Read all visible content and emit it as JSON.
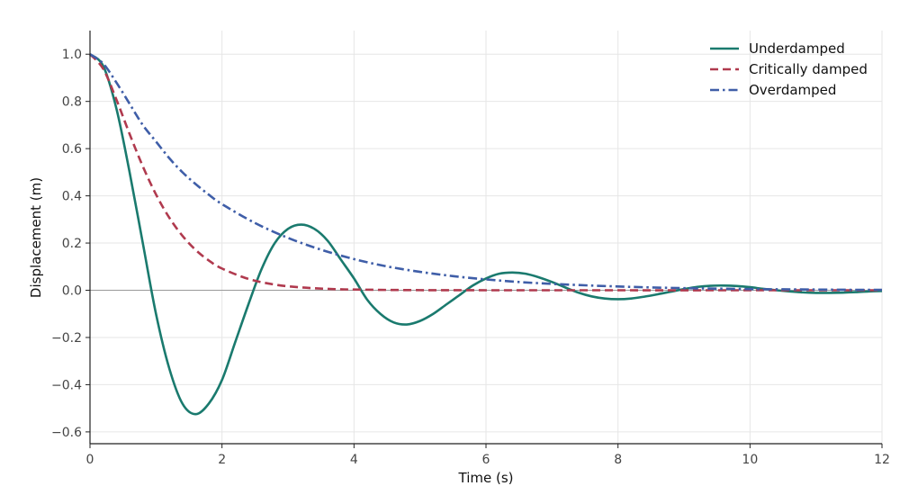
{
  "chart_data": {
    "type": "line",
    "title": "",
    "xlabel": "Time (s)",
    "ylabel": "Displacement (m)",
    "xlim": [
      0,
      12
    ],
    "ylim": [
      -0.65,
      1.1
    ],
    "xticks": [
      0,
      2,
      4,
      6,
      8,
      10,
      12
    ],
    "xtick_labels": [
      "0",
      "2",
      "4",
      "6",
      "8",
      "10",
      "12"
    ],
    "yticks": [
      -0.6,
      -0.4,
      -0.2,
      0.0,
      0.2,
      0.4,
      0.6,
      0.8,
      1.0
    ],
    "ytick_labels": [
      "−0.6",
      "−0.4",
      "−0.2",
      "0.0",
      "0.2",
      "0.4",
      "0.6",
      "0.8",
      "1.0"
    ],
    "grid": true,
    "zero_line": true,
    "legend_position": "top-right",
    "series": [
      {
        "name": "Underdamped",
        "color": "#1a7a6e",
        "dash": "solid",
        "x": [
          0,
          0.2,
          0.4,
          0.6,
          0.8,
          1.0,
          1.2,
          1.4,
          1.6,
          1.8,
          2.0,
          2.2,
          2.4,
          2.6,
          2.8,
          3.0,
          3.2,
          3.4,
          3.6,
          3.8,
          4.0,
          4.2,
          4.4,
          4.6,
          4.8,
          5.0,
          5.2,
          5.4,
          5.6,
          5.8,
          6.0,
          6.2,
          6.4,
          6.6,
          6.8,
          7.0,
          7.2,
          7.4,
          7.6,
          7.8,
          8.0,
          8.2,
          8.4,
          8.6,
          8.8,
          9.0,
          9.2,
          9.4,
          9.6,
          9.8,
          10.0,
          10.2,
          10.4,
          10.6,
          10.8,
          11.0,
          11.2,
          11.4,
          11.6,
          11.8,
          12.0
        ],
        "y": [
          1.0,
          0.95,
          0.77,
          0.5,
          0.2,
          -0.1,
          -0.33,
          -0.48,
          -0.525,
          -0.48,
          -0.38,
          -0.22,
          -0.06,
          0.09,
          0.2,
          0.26,
          0.278,
          0.26,
          0.21,
          0.13,
          0.05,
          -0.04,
          -0.1,
          -0.136,
          -0.145,
          -0.13,
          -0.1,
          -0.06,
          -0.02,
          0.02,
          0.05,
          0.07,
          0.075,
          0.07,
          0.055,
          0.035,
          0.012,
          -0.01,
          -0.026,
          -0.035,
          -0.038,
          -0.035,
          -0.027,
          -0.017,
          -0.006,
          0.005,
          0.014,
          0.019,
          0.02,
          0.018,
          0.013,
          0.006,
          0.0,
          -0.005,
          -0.009,
          -0.011,
          -0.011,
          -0.01,
          -0.008,
          -0.005,
          -0.003
        ]
      },
      {
        "name": "Critically damped",
        "color": "#b03a4e",
        "dash": "dashed",
        "x": [
          0,
          0.2,
          0.4,
          0.6,
          0.8,
          1.0,
          1.2,
          1.4,
          1.6,
          1.8,
          2.0,
          2.4,
          2.8,
          3.2,
          3.6,
          4.0,
          5.0,
          6.0,
          8.0,
          10.0,
          12.0
        ],
        "y": [
          1.0,
          0.938,
          0.808,
          0.662,
          0.525,
          0.406,
          0.308,
          0.231,
          0.171,
          0.126,
          0.092,
          0.048,
          0.024,
          0.012,
          0.006,
          0.003,
          0.0005,
          0.0001,
          0.0,
          0.0,
          0.0
        ]
      },
      {
        "name": "Overdamped",
        "color": "#3f5ea8",
        "dash": "dashdot",
        "x": [
          0,
          0.2,
          0.4,
          0.6,
          0.8,
          1.0,
          1.2,
          1.4,
          1.6,
          1.8,
          2.0,
          2.5,
          3.0,
          3.5,
          4.0,
          4.5,
          5.0,
          5.5,
          6.0,
          6.5,
          7.0,
          7.5,
          8.0,
          8.5,
          9.0,
          9.5,
          10.0,
          10.5,
          11.0,
          11.5,
          12.0
        ],
        "y": [
          1.0,
          0.96,
          0.88,
          0.79,
          0.7,
          0.63,
          0.56,
          0.5,
          0.45,
          0.405,
          0.365,
          0.285,
          0.222,
          0.172,
          0.132,
          0.101,
          0.078,
          0.06,
          0.046,
          0.035,
          0.027,
          0.021,
          0.016,
          0.012,
          0.009,
          0.007,
          0.005,
          0.004,
          0.003,
          0.002,
          0.002
        ]
      }
    ]
  }
}
